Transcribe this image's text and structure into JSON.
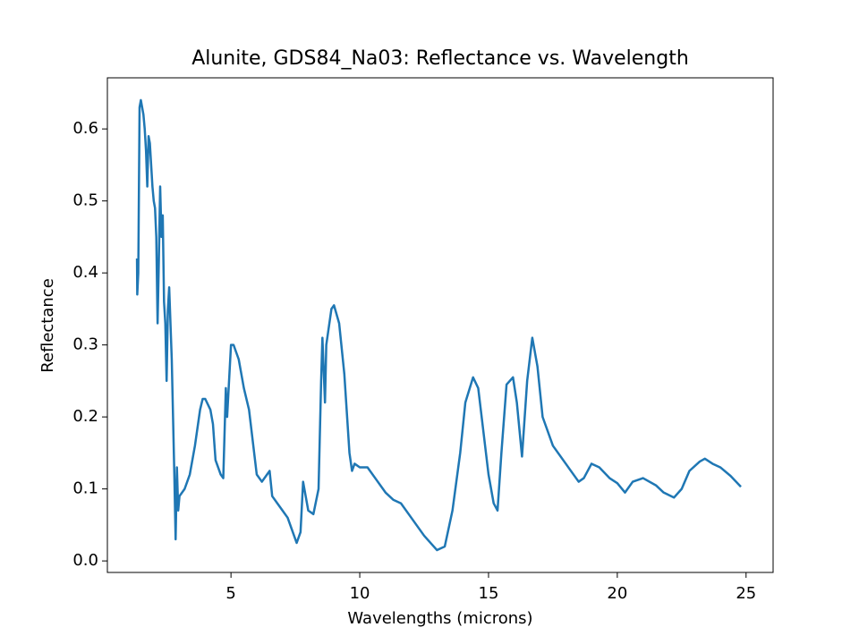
{
  "chart_data": {
    "type": "line",
    "title": "Alunite, GDS84_Na03: Reflectance vs. Wavelength",
    "x_label": "Wavelengths (microns)",
    "y_label": "Reflectance",
    "x": [
      1.35,
      1.36,
      1.4,
      1.45,
      1.5,
      1.55,
      1.6,
      1.65,
      1.7,
      1.75,
      1.8,
      1.85,
      1.9,
      1.95,
      2.0,
      2.05,
      2.1,
      2.15,
      2.2,
      2.25,
      2.3,
      2.35,
      2.4,
      2.45,
      2.5,
      2.55,
      2.6,
      2.65,
      2.7,
      2.75,
      2.8,
      2.85,
      2.9,
      2.95,
      3.0,
      3.2,
      3.4,
      3.6,
      3.8,
      3.9,
      4.0,
      4.2,
      4.3,
      4.4,
      4.5,
      4.6,
      4.7,
      4.8,
      4.85,
      5.0,
      5.1,
      5.3,
      5.5,
      5.7,
      5.9,
      6.0,
      6.2,
      6.4,
      6.5,
      6.6,
      6.8,
      7.0,
      7.2,
      7.4,
      7.55,
      7.7,
      7.8,
      7.9,
      8.0,
      8.2,
      8.4,
      8.5,
      8.55,
      8.65,
      8.7,
      8.9,
      9.0,
      9.2,
      9.4,
      9.6,
      9.7,
      9.8,
      10.0,
      10.3,
      10.6,
      11.0,
      11.3,
      11.6,
      12.0,
      12.5,
      13.0,
      13.3,
      13.6,
      13.9,
      14.1,
      14.4,
      14.6,
      14.8,
      15.0,
      15.2,
      15.35,
      15.5,
      15.7,
      15.95,
      16.1,
      16.3,
      16.5,
      16.7,
      16.9,
      17.1,
      17.5,
      18.0,
      18.5,
      18.7,
      19.0,
      19.3,
      19.7,
      20.0,
      20.3,
      20.6,
      21.0,
      21.5,
      21.8,
      22.2,
      22.5,
      22.8,
      23.2,
      23.4,
      23.7,
      24.0,
      24.4,
      24.8
    ],
    "series": [
      {
        "name": "Reflectance",
        "color": "#1f77b4",
        "values": [
          0.42,
          0.37,
          0.4,
          0.63,
          0.64,
          0.63,
          0.62,
          0.6,
          0.57,
          0.52,
          0.59,
          0.58,
          0.55,
          0.52,
          0.5,
          0.49,
          0.45,
          0.33,
          0.42,
          0.52,
          0.45,
          0.48,
          0.36,
          0.33,
          0.25,
          0.35,
          0.38,
          0.33,
          0.28,
          0.2,
          0.12,
          0.03,
          0.13,
          0.07,
          0.09,
          0.1,
          0.12,
          0.16,
          0.21,
          0.225,
          0.225,
          0.21,
          0.19,
          0.14,
          0.13,
          0.12,
          0.115,
          0.24,
          0.2,
          0.3,
          0.3,
          0.28,
          0.24,
          0.21,
          0.15,
          0.12,
          0.11,
          0.12,
          0.125,
          0.09,
          0.08,
          0.07,
          0.06,
          0.04,
          0.025,
          0.04,
          0.11,
          0.09,
          0.07,
          0.065,
          0.1,
          0.25,
          0.31,
          0.22,
          0.3,
          0.35,
          0.355,
          0.33,
          0.26,
          0.15,
          0.125,
          0.135,
          0.13,
          0.13,
          0.115,
          0.095,
          0.085,
          0.08,
          0.06,
          0.035,
          0.015,
          0.02,
          0.07,
          0.15,
          0.22,
          0.255,
          0.24,
          0.18,
          0.12,
          0.08,
          0.07,
          0.15,
          0.245,
          0.255,
          0.22,
          0.145,
          0.25,
          0.31,
          0.27,
          0.2,
          0.16,
          0.135,
          0.11,
          0.115,
          0.135,
          0.13,
          0.115,
          0.108,
          0.095,
          0.11,
          0.115,
          0.105,
          0.095,
          0.088,
          0.1,
          0.125,
          0.138,
          0.142,
          0.135,
          0.13,
          0.118,
          0.103
        ]
      }
    ],
    "xlim": [
      0.2,
      26.05
    ],
    "ylim": [
      -0.016,
      0.671
    ],
    "xticks": [
      5,
      10,
      15,
      20,
      25
    ],
    "yticks": [
      {
        "value": 0,
        "label": "0.0"
      },
      0.1,
      0.2,
      0.3,
      0.4,
      0.5,
      0.6
    ]
  }
}
